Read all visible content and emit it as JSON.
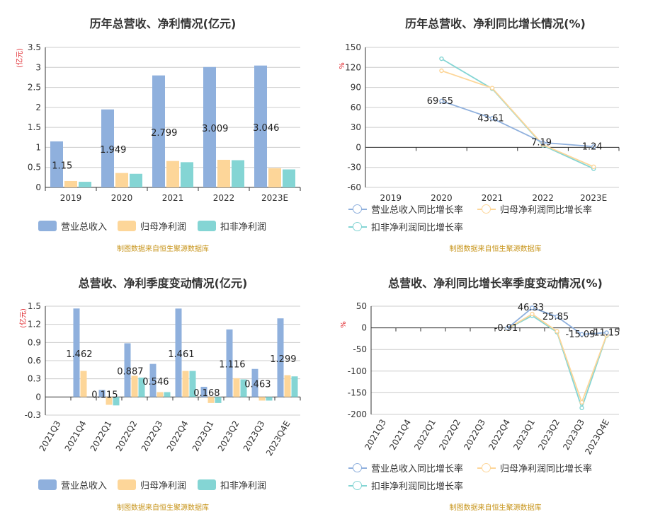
{
  "colors": {
    "revenue": "#8fb0dd",
    "net_profit": "#fdd699",
    "deducted": "#84d5d4",
    "axis": "#333333",
    "grid": "#cccccc",
    "unit": "#e0282d",
    "source": "#c8961e"
  },
  "source_note": "制图数据来自恒生聚源数据库",
  "legend_bars": [
    "营业总收入",
    "归母净利润",
    "扣非净利润"
  ],
  "legend_lines": [
    "营业总收入同比增长率",
    "归母净利润同比增长率",
    "扣非净利润同比增长率"
  ],
  "chart_data": [
    {
      "type": "bar",
      "title": "历年总营收、净利情况(亿元)",
      "ylabel": "(亿元)",
      "ylim": [
        0,
        3.5
      ],
      "yticks": [
        0,
        0.5,
        1,
        1.5,
        2,
        2.5,
        3,
        3.5
      ],
      "grid": true,
      "legend_position": "bottom",
      "categories": [
        "2019",
        "2020",
        "2021",
        "2022",
        "2023E"
      ],
      "series": [
        {
          "name": "营业总收入",
          "values": [
            1.15,
            1.949,
            2.799,
            3.009,
            3.046
          ],
          "labels": [
            "1.15",
            "1.949",
            "2.799",
            "3.009",
            "3.046"
          ]
        },
        {
          "name": "归母净利润",
          "values": [
            0.16,
            0.36,
            0.66,
            0.69,
            0.48
          ]
        },
        {
          "name": "扣非净利润",
          "values": [
            0.14,
            0.34,
            0.63,
            0.68,
            0.45
          ]
        }
      ]
    },
    {
      "type": "line",
      "title": "历年总营收、净利同比增长情况(%)",
      "ylabel": "%",
      "ylim": [
        -60,
        150
      ],
      "yticks": [
        -60,
        -30,
        0,
        30,
        60,
        90,
        120,
        150
      ],
      "grid": true,
      "legend_position": "bottom",
      "categories": [
        "2019",
        "2020",
        "2021",
        "2022",
        "2023E"
      ],
      "series": [
        {
          "name": "营业总收入同比增长率",
          "values": [
            null,
            69.55,
            43.61,
            7.19,
            1.24
          ],
          "labels": [
            "",
            "69.55",
            "43.61",
            "7.19",
            "1.24"
          ]
        },
        {
          "name": "归母净利润同比增长率",
          "values": [
            null,
            115,
            89,
            4,
            -29
          ]
        },
        {
          "name": "扣非净利润同比增长率",
          "values": [
            null,
            133,
            88,
            3,
            -32
          ]
        }
      ]
    },
    {
      "type": "bar",
      "title": "总营收、净利季度变动情况(亿元)",
      "ylabel": "(亿元)",
      "ylim": [
        -0.3,
        1.5
      ],
      "yticks": [
        -0.3,
        0,
        0.3,
        0.6,
        0.9,
        1.2,
        1.5
      ],
      "yticklabels": [
        "-0.3",
        "0",
        "0.3",
        "0.6",
        "0.9",
        "1.2",
        "1.5"
      ],
      "grid": true,
      "legend_position": "bottom",
      "categories": [
        "2021Q3",
        "2021Q4",
        "2022Q1",
        "2022Q2",
        "2022Q3",
        "2022Q4",
        "2023Q1",
        "2023Q2",
        "2023Q3",
        "2023Q4E"
      ],
      "series": [
        {
          "name": "营业总收入",
          "values": [
            null,
            1.462,
            0.115,
            0.887,
            0.546,
            1.461,
            0.168,
            1.116,
            0.463,
            1.299
          ],
          "labels": [
            "",
            "1.462",
            "0.115",
            "0.887",
            "0.546",
            "1.461",
            "0.168",
            "1.116",
            "0.463",
            "1.299"
          ]
        },
        {
          "name": "归母净利润",
          "values": [
            null,
            0.43,
            -0.13,
            0.35,
            0.08,
            0.43,
            -0.1,
            0.31,
            -0.06,
            0.36
          ]
        },
        {
          "name": "扣非净利润",
          "values": [
            null,
            null,
            -0.14,
            0.32,
            0.08,
            0.43,
            -0.1,
            0.29,
            -0.06,
            0.34
          ]
        }
      ]
    },
    {
      "type": "line",
      "title": "总营收、净利同比增长率季度变动情况(%)",
      "ylabel": "%",
      "ylim": [
        -200,
        50
      ],
      "yticks": [
        -200,
        -150,
        -100,
        -50,
        0,
        50
      ],
      "grid": true,
      "legend_position": "bottom",
      "categories": [
        "2021Q3",
        "2021Q4",
        "2022Q1",
        "2022Q2",
        "2022Q3",
        "2022Q4",
        "2023Q1",
        "2023Q2",
        "2023Q3",
        "2023Q4E"
      ],
      "series": [
        {
          "name": "营业总收入同比增长率",
          "values": [
            null,
            null,
            null,
            null,
            null,
            -0.91,
            46.33,
            25.85,
            -15.09,
            -11.15
          ],
          "labels": [
            "",
            "",
            "",
            "",
            "",
            "-0.91",
            "46.33",
            "25.85",
            "-15.09",
            "-11.15"
          ]
        },
        {
          "name": "归母净利润同比增长率",
          "values": [
            null,
            null,
            null,
            null,
            null,
            -2,
            32,
            -8,
            -172,
            -17
          ]
        },
        {
          "name": "扣非净利润同比增长率",
          "values": [
            null,
            null,
            null,
            null,
            null,
            -2,
            28,
            -10,
            -185,
            -18
          ]
        }
      ]
    }
  ]
}
